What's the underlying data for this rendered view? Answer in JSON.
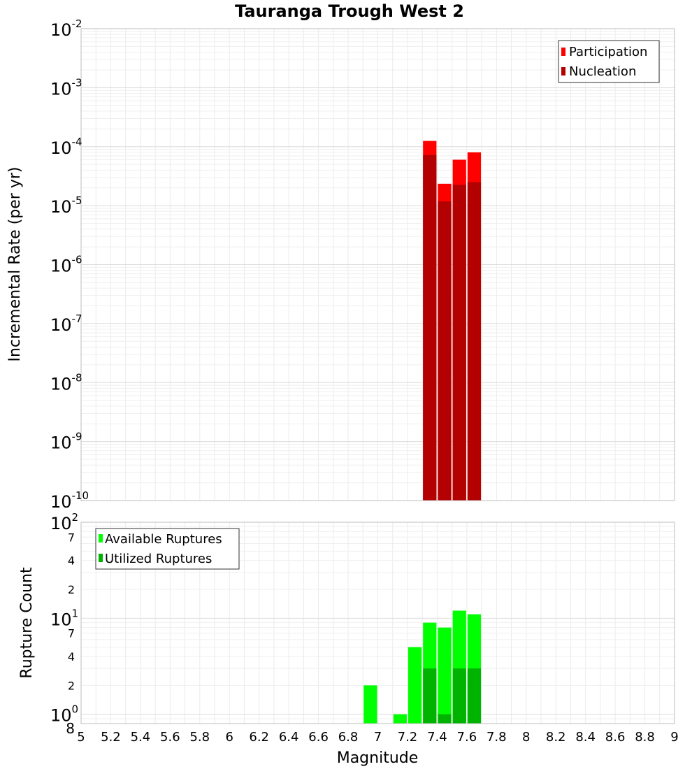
{
  "chart_data": [
    {
      "type": "bar",
      "title": "Tauranga Trough West 2",
      "xlabel": "Magnitude",
      "ylabel": "Incremental Rate (per yr)",
      "yscale": "log",
      "xlim": [
        5,
        9
      ],
      "ylim": [
        1e-10,
        0.01
      ],
      "grid": true,
      "legend_position": "top-right",
      "bin_width": 0.1,
      "y_tick_bases": [
        "10",
        "10",
        "10",
        "10",
        "10",
        "10",
        "10",
        "10",
        "10"
      ],
      "y_tick_exponents": [
        "-10",
        "-9",
        "-8",
        "-7",
        "-6",
        "-5",
        "-4",
        "-3",
        "-2"
      ],
      "series": [
        {
          "name": "Participation",
          "color": "#ff0000",
          "x": [
            7.35,
            7.45,
            7.55,
            7.65
          ],
          "values": [
            0.000125,
            2.35e-05,
            6e-05,
            8e-05
          ]
        },
        {
          "name": "Nucleation",
          "color": "#b30000",
          "x": [
            7.35,
            7.45,
            7.55,
            7.65
          ],
          "values": [
            7.2e-05,
            1.18e-05,
            2.25e-05,
            2.5e-05
          ]
        }
      ]
    },
    {
      "type": "bar",
      "xlabel": "Magnitude",
      "ylabel": "Rupture Count",
      "yscale": "log",
      "xlim": [
        5,
        9
      ],
      "ylim": [
        0.8,
        100
      ],
      "grid": true,
      "legend_position": "top-left",
      "bin_width": 0.1,
      "x_ticks": [
        "5",
        "5.2",
        "5.4",
        "5.6",
        "5.8",
        "6",
        "6.2",
        "6.4",
        "6.6",
        "6.8",
        "7",
        "7.2",
        "7.4",
        "7.6",
        "7.8",
        "8",
        "8.2",
        "8.4",
        "8.6",
        "8.8",
        "9"
      ],
      "y_major_ticks": [
        {
          "base": "10",
          "exp": "0"
        },
        {
          "base": "10",
          "exp": "1"
        },
        {
          "base": "10",
          "exp": "2"
        }
      ],
      "y_minor_labels": [
        "8",
        "2",
        "4",
        "7",
        "2",
        "4",
        "7"
      ],
      "series": [
        {
          "name": "Available Ruptures",
          "color": "#00ff00",
          "x": [
            6.95,
            7.15,
            7.25,
            7.35,
            7.45,
            7.55,
            7.65
          ],
          "values": [
            2,
            1,
            5,
            9,
            8,
            12,
            11
          ]
        },
        {
          "name": "Utilized Ruptures",
          "color": "#00b300",
          "x": [
            7.35,
            7.45,
            7.55,
            7.65
          ],
          "values": [
            3,
            1,
            3,
            3
          ]
        }
      ]
    }
  ]
}
